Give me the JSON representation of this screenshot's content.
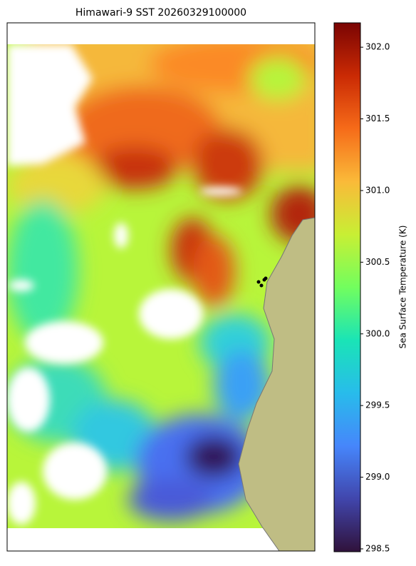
{
  "chart_data": {
    "type": "heatmap",
    "title": "Himawari-9 SST 20260329100000",
    "colorbar": {
      "label": "Sea Surface Temperature (K)",
      "colormap": "turbo",
      "lim": [
        298.48,
        302.17
      ],
      "ticks": [
        {
          "value": 298.5,
          "label": "298.5"
        },
        {
          "value": 299,
          "label": "299.0"
        },
        {
          "value": 299.5,
          "label": "299.5"
        },
        {
          "value": 300,
          "label": "300.0"
        },
        {
          "value": 300.5,
          "label": "300.5"
        },
        {
          "value": 301,
          "label": "301.0"
        },
        {
          "value": 301.5,
          "label": "301.5"
        },
        {
          "value": 302,
          "label": "302.0"
        }
      ]
    }
  }
}
